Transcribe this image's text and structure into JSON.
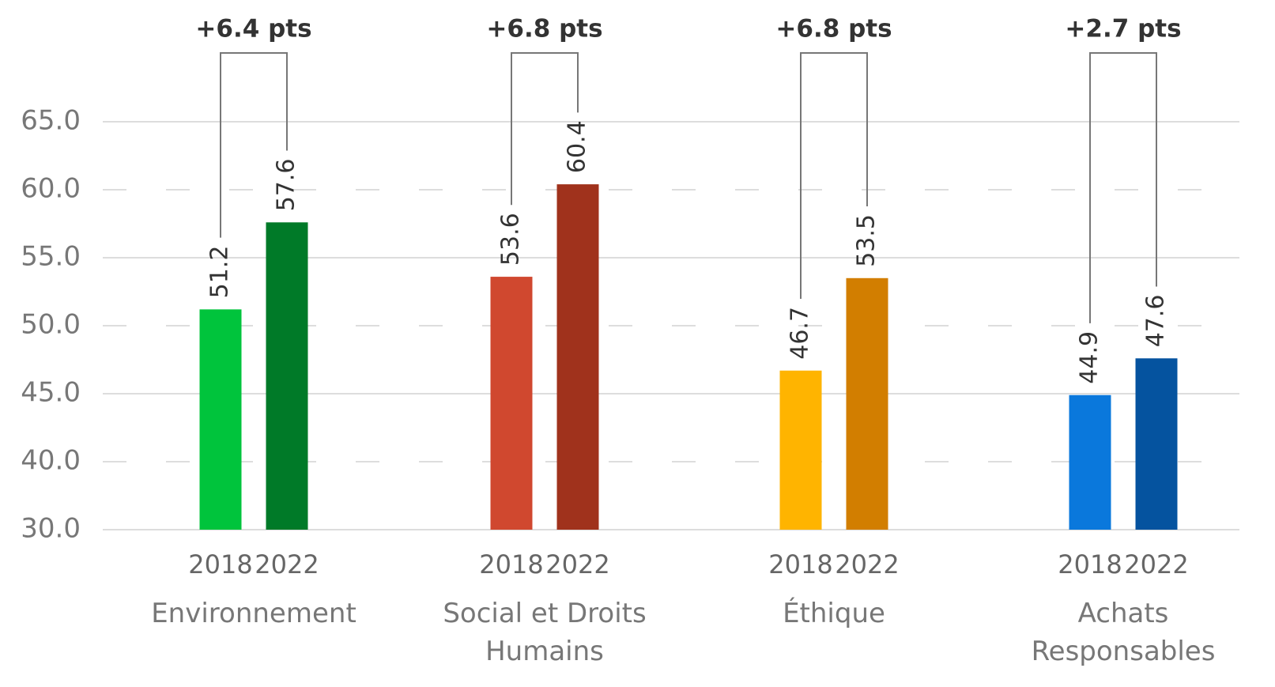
{
  "chart_data": {
    "type": "bar",
    "categories": [
      "Environnement",
      "Social et Droits Humains",
      "Éthique",
      "Achats Responsables"
    ],
    "series": [
      {
        "name": "2018",
        "colors": [
          "#00c43c",
          "#d0482f",
          "#ffb400",
          "#0a78dc"
        ],
        "values": [
          51.2,
          53.6,
          46.7,
          44.9
        ]
      },
      {
        "name": "2022",
        "colors": [
          "#007a28",
          "#a0321c",
          "#d27e00",
          "#05539f"
        ],
        "values": [
          57.6,
          60.4,
          53.5,
          47.6
        ]
      }
    ],
    "annotations": [
      "+6.4 pts",
      "+6.8 pts",
      "+6.8 pts",
      "+2.7 pts"
    ],
    "ylim": [
      30,
      65
    ],
    "yticks": [
      {
        "value": 30,
        "label": "30.0"
      },
      {
        "value": 40,
        "label": "40.0"
      },
      {
        "value": 45,
        "label": "45.0"
      },
      {
        "value": 50,
        "label": "50.0"
      },
      {
        "value": 55,
        "label": "55.0"
      },
      {
        "value": 60,
        "label": "60.0"
      },
      {
        "value": 65,
        "label": "65.0"
      }
    ],
    "grid": true
  }
}
